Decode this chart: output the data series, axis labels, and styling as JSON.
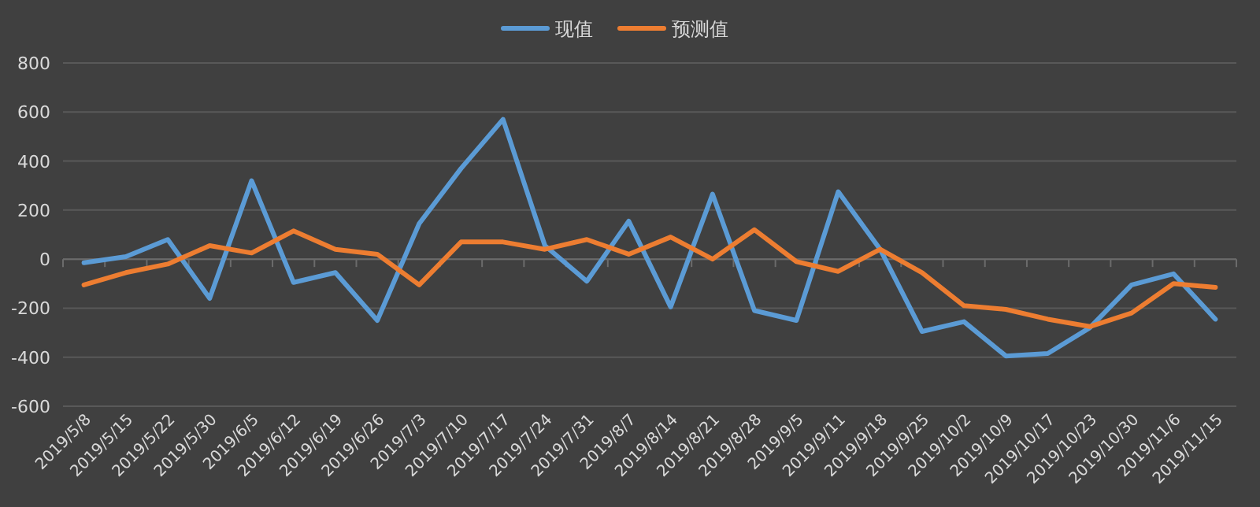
{
  "chart_data": {
    "type": "line",
    "categories": [
      "2019/5/8",
      "2019/5/15",
      "2019/5/22",
      "2019/5/30",
      "2019/6/5",
      "2019/6/12",
      "2019/6/19",
      "2019/6/26",
      "2019/7/3",
      "2019/7/10",
      "2019/7/17",
      "2019/7/24",
      "2019/7/31",
      "2019/8/7",
      "2019/8/14",
      "2019/8/21",
      "2019/8/28",
      "2019/9/5",
      "2019/9/11",
      "2019/9/18",
      "2019/9/25",
      "2019/10/2",
      "2019/10/9",
      "2019/10/17",
      "2019/10/23",
      "2019/10/30",
      "2019/11/6",
      "2019/11/15"
    ],
    "series": [
      {
        "name": "现值",
        "color": "#5b9bd5",
        "values": [
          -15,
          10,
          80,
          -160,
          320,
          -95,
          -55,
          -250,
          145,
          370,
          570,
          55,
          -90,
          155,
          -195,
          265,
          -210,
          -250,
          275,
          40,
          -295,
          -255,
          -395,
          -385,
          -280,
          -105,
          -60,
          -245
        ]
      },
      {
        "name": "预测值",
        "color": "#ed7d31",
        "values": [
          -105,
          -55,
          -20,
          55,
          25,
          115,
          40,
          20,
          -105,
          70,
          70,
          40,
          80,
          20,
          90,
          0,
          120,
          -10,
          -50,
          40,
          -55,
          -190,
          -205,
          -245,
          -275,
          -220,
          -100,
          -115
        ]
      }
    ],
    "ylim": [
      -600,
      800
    ],
    "yticks": [
      -600,
      -400,
      -200,
      0,
      200,
      400,
      600,
      800
    ],
    "grid": "y",
    "legend": "top",
    "marker": "none",
    "line_style": "solid"
  }
}
